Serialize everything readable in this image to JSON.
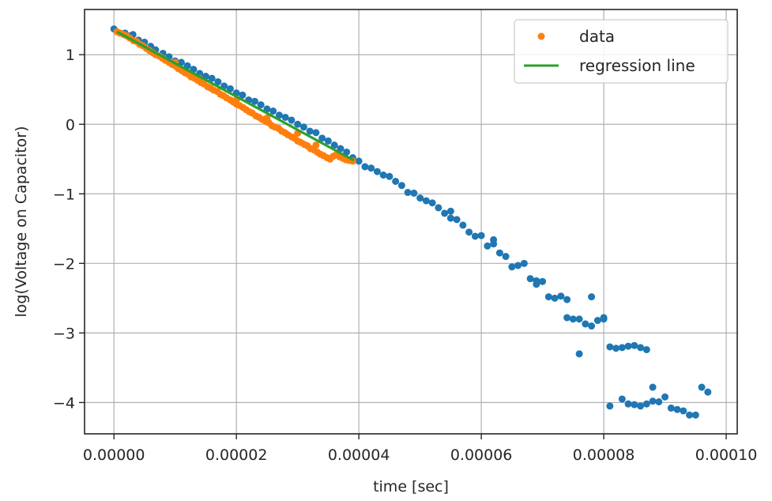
{
  "chart_data": {
    "type": "scatter",
    "xlabel": "time [sec]",
    "ylabel": "log(Voltage on Capacitor)",
    "xlim": [
      -4.8e-06,
      0.0001018
    ],
    "ylim": [
      -4.45,
      1.65
    ],
    "x_ticks": [
      0,
      2e-05,
      4e-05,
      6e-05,
      8e-05,
      0.0001
    ],
    "x_tick_labels": [
      "0.00000",
      "0.00002",
      "0.00004",
      "0.00006",
      "0.00008",
      "0.00010"
    ],
    "y_ticks": [
      1,
      0,
      -1,
      -2,
      -3,
      -4
    ],
    "y_tick_labels": [
      "1",
      "0",
      "−1",
      "−2",
      "−3",
      "−4"
    ],
    "grid": true,
    "legend_position": "top-right",
    "legend": [
      {
        "label": "data",
        "marker": "dot",
        "color": "#ff7f0e"
      },
      {
        "label": "regression line",
        "marker": "line",
        "color": "#2ca02c"
      }
    ],
    "colors": {
      "all_points": "#1f77b4",
      "fit_points": "#ff7f0e",
      "regression_line": "#2ca02c"
    },
    "all_points": [
      [
        0.0,
        1.37
      ],
      [
        1.8e-06,
        1.31
      ],
      [
        2.5e-06,
        1.27
      ],
      [
        3.1e-06,
        1.29
      ],
      [
        4e-06,
        1.21
      ],
      [
        5e-06,
        1.18
      ],
      [
        6e-06,
        1.12
      ],
      [
        6.8e-06,
        1.07
      ],
      [
        8e-06,
        1.02
      ],
      [
        9e-06,
        0.97
      ],
      [
        1e-05,
        0.91
      ],
      [
        1.1e-05,
        0.89
      ],
      [
        1.2e-05,
        0.84
      ],
      [
        1.3e-05,
        0.79
      ],
      [
        1.4e-05,
        0.73
      ],
      [
        1.5e-05,
        0.69
      ],
      [
        1.6e-05,
        0.66
      ],
      [
        1.7e-05,
        0.61
      ],
      [
        1.8e-05,
        0.55
      ],
      [
        1.9e-05,
        0.51
      ],
      [
        2e-05,
        0.45
      ],
      [
        2.1e-05,
        0.42
      ],
      [
        2.2e-05,
        0.35
      ],
      [
        2.3e-05,
        0.33
      ],
      [
        2.4e-05,
        0.28
      ],
      [
        2.5e-05,
        0.22
      ],
      [
        2.6e-05,
        0.19
      ],
      [
        2.7e-05,
        0.13
      ],
      [
        2.8e-05,
        0.1
      ],
      [
        2.9e-05,
        0.06
      ],
      [
        3e-05,
        0.0
      ],
      [
        3.1e-05,
        -0.04
      ],
      [
        3.2e-05,
        -0.1
      ],
      [
        3.3e-05,
        -0.12
      ],
      [
        3.4e-05,
        -0.2
      ],
      [
        3.5e-05,
        -0.24
      ],
      [
        3.6e-05,
        -0.3
      ],
      [
        3.7e-05,
        -0.35
      ],
      [
        3.8e-05,
        -0.4
      ],
      [
        3.9e-05,
        -0.48
      ],
      [
        4e-05,
        -0.53
      ],
      [
        4.1e-05,
        -0.61
      ],
      [
        4.2e-05,
        -0.63
      ],
      [
        4.3e-05,
        -0.68
      ],
      [
        4.4e-05,
        -0.73
      ],
      [
        4.5e-05,
        -0.75
      ],
      [
        4.6e-05,
        -0.82
      ],
      [
        4.7e-05,
        -0.88
      ],
      [
        4.8e-05,
        -0.98
      ],
      [
        4.9e-05,
        -0.99
      ],
      [
        5e-05,
        -1.06
      ],
      [
        5.1e-05,
        -1.1
      ],
      [
        5.2e-05,
        -1.13
      ],
      [
        5.3e-05,
        -1.2
      ],
      [
        5.4e-05,
        -1.28
      ],
      [
        5.5e-05,
        -1.25
      ],
      [
        5.6e-05,
        -1.37
      ],
      [
        5.7e-05,
        -1.45
      ],
      [
        5.8e-05,
        -1.55
      ],
      [
        5.9e-05,
        -1.61
      ],
      [
        6e-05,
        -1.6
      ],
      [
        6.1e-05,
        -1.75
      ],
      [
        6.2e-05,
        -1.66
      ],
      [
        6.3e-05,
        -1.85
      ],
      [
        6.4e-05,
        -1.9
      ],
      [
        6.5e-05,
        -2.05
      ],
      [
        6.6e-05,
        -2.03
      ],
      [
        6.7e-05,
        -2.0
      ],
      [
        6.8e-05,
        -2.22
      ],
      [
        6.9e-05,
        -2.3
      ],
      [
        7e-05,
        -2.26
      ],
      [
        7.1e-05,
        -2.48
      ],
      [
        7.2e-05,
        -2.5
      ],
      [
        7.3e-05,
        -2.47
      ],
      [
        7.4e-05,
        -2.52
      ],
      [
        7.5e-05,
        -2.8
      ],
      [
        7.6e-05,
        -2.8
      ],
      [
        7.7e-05,
        -2.87
      ],
      [
        7.8e-05,
        -2.9
      ],
      [
        7.9e-05,
        -2.82
      ],
      [
        8e-05,
        -2.8
      ],
      [
        8.1e-05,
        -3.2
      ],
      [
        8.2e-05,
        -3.22
      ],
      [
        8.3e-05,
        -3.21
      ],
      [
        8.4e-05,
        -3.19
      ],
      [
        8.5e-05,
        -3.18
      ],
      [
        8.6e-05,
        -3.21
      ],
      [
        8.7e-05,
        -3.24
      ],
      [
        8.1e-05,
        -4.05
      ],
      [
        8.3e-05,
        -3.95
      ],
      [
        8.4e-05,
        -4.02
      ],
      [
        8.5e-05,
        -4.03
      ],
      [
        8.6e-05,
        -4.05
      ],
      [
        8.7e-05,
        -4.02
      ],
      [
        8.8e-05,
        -3.98
      ],
      [
        8.9e-05,
        -3.99
      ],
      [
        9e-05,
        -3.92
      ],
      [
        9.1e-05,
        -4.08
      ],
      [
        9.2e-05,
        -4.1
      ],
      [
        9.3e-05,
        -4.12
      ],
      [
        9.4e-05,
        -4.18
      ],
      [
        9.5e-05,
        -4.18
      ],
      [
        9.6e-05,
        -3.78
      ],
      [
        9.7e-05,
        -3.85
      ],
      [
        8.8e-05,
        -3.78
      ],
      [
        7.6e-05,
        -3.3
      ],
      [
        7.8e-05,
        -2.48
      ],
      [
        6.9e-05,
        -2.25
      ],
      [
        6.2e-05,
        -1.72
      ],
      [
        5.5e-05,
        -1.35
      ],
      [
        7.4e-05,
        -2.78
      ],
      [
        8e-05,
        -2.78
      ]
    ],
    "fit_points": [
      [
        5e-07,
        1.33
      ],
      [
        1e-06,
        1.31
      ],
      [
        1.6e-06,
        1.29
      ],
      [
        2.1e-06,
        1.27
      ],
      [
        2.6e-06,
        1.24
      ],
      [
        3.2e-06,
        1.2
      ],
      [
        3.7e-06,
        1.19
      ],
      [
        4.2e-06,
        1.15
      ],
      [
        4.7e-06,
        1.13
      ],
      [
        5.3e-06,
        1.09
      ],
      [
        5.8e-06,
        1.06
      ],
      [
        6.3e-06,
        1.03
      ],
      [
        6.8e-06,
        1.0
      ],
      [
        7.4e-06,
        0.98
      ],
      [
        7.9e-06,
        0.95
      ],
      [
        8.4e-06,
        0.92
      ],
      [
        9e-06,
        0.89
      ],
      [
        9.5e-06,
        0.86
      ],
      [
        1e-05,
        0.84
      ],
      [
        1.05e-05,
        0.8
      ],
      [
        1.11e-05,
        0.77
      ],
      [
        1.16e-05,
        0.74
      ],
      [
        1.21e-05,
        0.72
      ],
      [
        1.26e-05,
        0.68
      ],
      [
        1.32e-05,
        0.66
      ],
      [
        1.37e-05,
        0.63
      ],
      [
        1.42e-05,
        0.6
      ],
      [
        1.47e-05,
        0.58
      ],
      [
        1.53e-05,
        0.54
      ],
      [
        1.58e-05,
        0.52
      ],
      [
        1.63e-05,
        0.49
      ],
      [
        1.69e-05,
        0.47
      ],
      [
        1.74e-05,
        0.43
      ],
      [
        1.79e-05,
        0.41
      ],
      [
        1.84e-05,
        0.38
      ],
      [
        1.9e-05,
        0.35
      ],
      [
        1.95e-05,
        0.32
      ],
      [
        2e-05,
        0.29
      ],
      [
        2.05e-05,
        0.27
      ],
      [
        2.11e-05,
        0.24
      ],
      [
        2.16e-05,
        0.21
      ],
      [
        2.21e-05,
        0.18
      ],
      [
        2.26e-05,
        0.16
      ],
      [
        2.32e-05,
        0.12
      ],
      [
        2.37e-05,
        0.1
      ],
      [
        2.42e-05,
        0.07
      ],
      [
        2.48e-05,
        0.04
      ],
      [
        2.53e-05,
        0.02
      ],
      [
        2.58e-05,
        -0.02
      ],
      [
        2.63e-05,
        -0.04
      ],
      [
        2.69e-05,
        -0.06
      ],
      [
        2.74e-05,
        -0.1
      ],
      [
        2.79e-05,
        -0.12
      ],
      [
        2.84e-05,
        -0.15
      ],
      [
        2.9e-05,
        -0.18
      ],
      [
        2.95e-05,
        -0.2
      ],
      [
        3e-05,
        -0.24
      ],
      [
        3.05e-05,
        -0.26
      ],
      [
        3.11e-05,
        -0.29
      ],
      [
        3.16e-05,
        -0.31
      ],
      [
        3.21e-05,
        -0.35
      ],
      [
        3.27e-05,
        -0.37
      ],
      [
        3.32e-05,
        -0.4
      ],
      [
        3.37e-05,
        -0.43
      ],
      [
        3.42e-05,
        -0.45
      ],
      [
        3.48e-05,
        -0.48
      ],
      [
        3.53e-05,
        -0.5
      ],
      [
        3.58e-05,
        -0.46
      ],
      [
        3.63e-05,
        -0.44
      ],
      [
        3.69e-05,
        -0.47
      ],
      [
        3.74e-05,
        -0.49
      ],
      [
        3.79e-05,
        -0.51
      ],
      [
        3.84e-05,
        -0.52
      ],
      [
        3.9e-05,
        -0.53
      ],
      [
        1.4e-05,
        0.66
      ],
      [
        2.5e-05,
        0.09
      ],
      [
        3e-05,
        -0.13
      ],
      [
        3.3e-05,
        -0.3
      ],
      [
        2e-05,
        0.35
      ],
      [
        1e-05,
        0.89
      ]
    ],
    "regression_line": {
      "x": [
        5e-07,
        3.92e-05
      ],
      "y": [
        1.33,
        -0.52
      ]
    }
  }
}
